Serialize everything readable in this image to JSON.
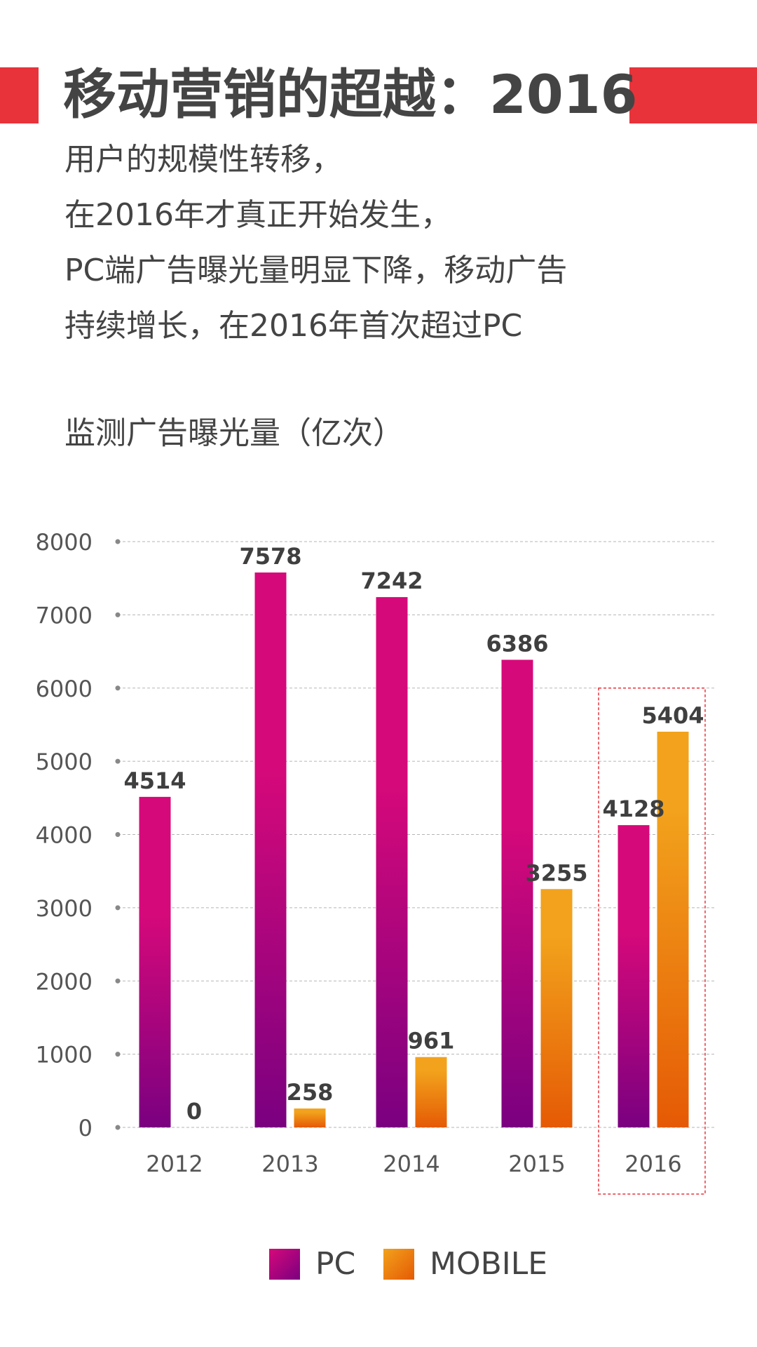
{
  "header": {
    "title": "移动营销的超越：2016",
    "accent_color": "#e8333a"
  },
  "intro": {
    "lines": [
      "用户的规模性转移，",
      "在2016年才真正开始发生，",
      "PC端广告曝光量明显下降，移动广告",
      "持续增长，在2016年首次超过PC"
    ]
  },
  "chart_data": {
    "type": "bar",
    "title": "监测广告曝光量（亿次）",
    "categories": [
      "2012",
      "2013",
      "2014",
      "2015",
      "2016"
    ],
    "series": [
      {
        "name": "PC",
        "values": [
          4514,
          7578,
          7242,
          6386,
          4128
        ],
        "gradient_top": "#d6097a",
        "gradient_bottom": "#7a0080"
      },
      {
        "name": "MOBILE",
        "values": [
          0,
          258,
          961,
          3255,
          5404
        ],
        "gradient_top": "#f2a21c",
        "gradient_bottom": "#e55a05"
      }
    ],
    "ylim": [
      0,
      8000
    ],
    "yticks": [
      "0",
      "1000",
      "2000",
      "3000",
      "4000",
      "5000",
      "6000",
      "7000",
      "8000"
    ],
    "xlabel": "",
    "ylabel": "",
    "grid": true,
    "highlight_category": "2016",
    "highlight_color": "#e8333a",
    "legend_position": "bottom-center"
  },
  "legend": {
    "items": [
      {
        "label": "PC"
      },
      {
        "label": "MOBILE"
      }
    ]
  }
}
